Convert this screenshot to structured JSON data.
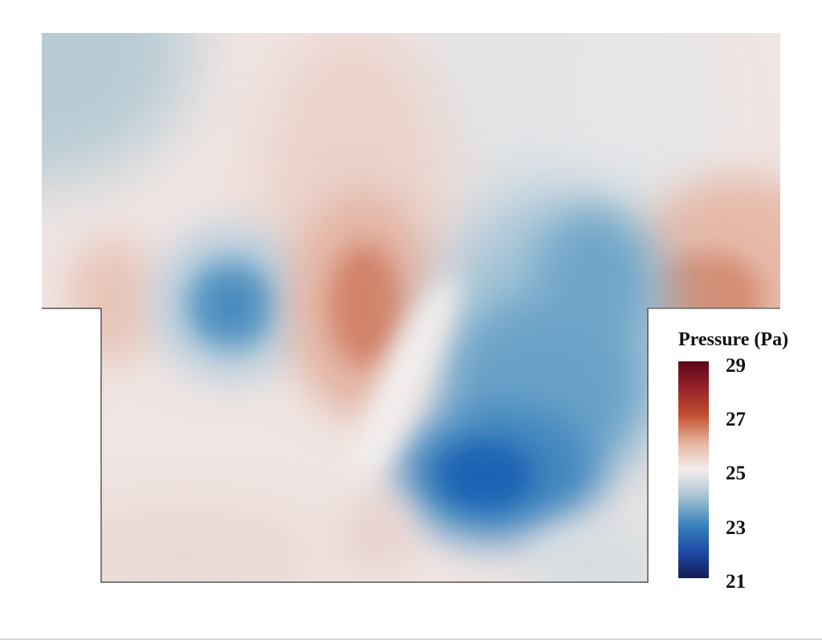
{
  "colorbar": {
    "title": "Pressure (Pa)",
    "min": 21,
    "max": 29,
    "ticks": [
      "29",
      "27",
      "25",
      "23",
      "21"
    ],
    "colors": {
      "high": "#6b0a1e",
      "upper": "#c04c30",
      "mid": "#f0ecea",
      "lower": "#2f78b8",
      "low": "#1a2a6c"
    }
  },
  "domain_colors": {
    "background": "#f0e6e4",
    "outline": "#333333"
  }
}
